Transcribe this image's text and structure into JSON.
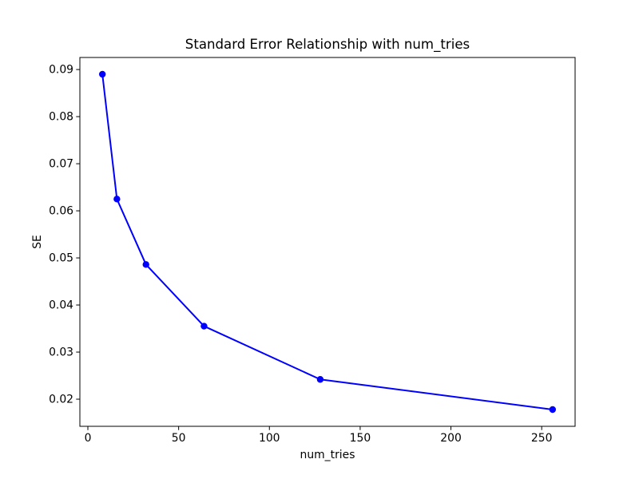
{
  "figure": {
    "background": "#ffffff"
  },
  "chart_data": {
    "type": "line",
    "title": "Standard Error Relationship with num_tries",
    "xlabel": "num_tries",
    "ylabel": "SE",
    "x": [
      8,
      16,
      32,
      64,
      128,
      256
    ],
    "y": [
      0.089,
      0.0625,
      0.0486,
      0.0355,
      0.0242,
      0.0178
    ],
    "xticks": [
      0,
      50,
      100,
      150,
      200,
      250
    ],
    "yticks": [
      0.02,
      0.03,
      0.04,
      0.05,
      0.06,
      0.07,
      0.08,
      0.09
    ],
    "xlim": [
      -4.4,
      268.4
    ],
    "ylim": [
      0.01424,
      0.09256
    ],
    "line_color": "#0000ff",
    "marker": "o",
    "grid": false,
    "legend_position": "none",
    "frame_color": "#000000"
  }
}
